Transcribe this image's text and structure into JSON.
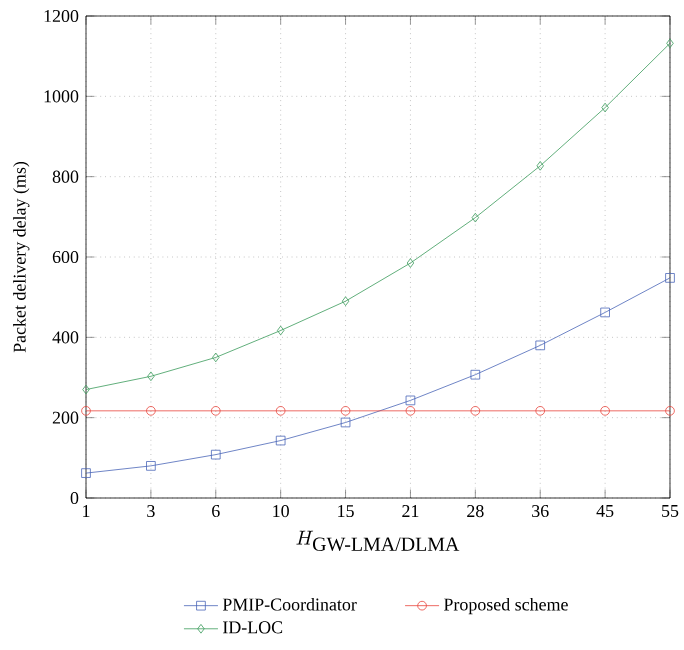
{
  "chart_data": {
    "type": "line",
    "xlabel": "H_{\\textrm{GW-LMA/DLMA}}",
    "ylabel": "Packet delivery delay (ms)",
    "categories": [
      "1",
      "3",
      "6",
      "10",
      "15",
      "21",
      "28",
      "36",
      "45",
      "55"
    ],
    "ylim": [
      0,
      1200
    ],
    "yticks": [
      0,
      200,
      400,
      600,
      800,
      1000,
      1200
    ],
    "grid": true,
    "legend": "bottom",
    "line_style": "solid",
    "series": [
      {
        "name": "PMIP-Coordinator",
        "color": "#4a66b8",
        "marker": "square",
        "values": [
          62,
          80,
          108,
          143,
          188,
          243,
          307,
          380,
          462,
          548
        ]
      },
      {
        "name": "ID-LOC",
        "color": "#3a9a5a",
        "marker": "diamond",
        "values": [
          270,
          303,
          350,
          417,
          490,
          585,
          698,
          827,
          972,
          1132
        ]
      },
      {
        "name": "Proposed scheme",
        "color": "#e8453c",
        "marker": "circle",
        "values": [
          217,
          217,
          217,
          217,
          217,
          217,
          217,
          217,
          217,
          217
        ]
      }
    ]
  }
}
